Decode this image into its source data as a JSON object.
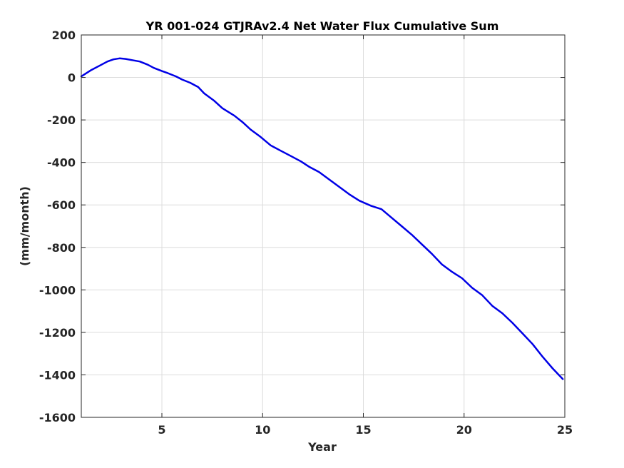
{
  "chart_data": {
    "type": "line",
    "title": "YR 001-024 GTJRAv2.4 Net Water Flux Cumulative Sum",
    "xlabel": "Year",
    "ylabel": "(mm/month)",
    "xlim": [
      1,
      25
    ],
    "ylim": [
      -1600,
      200
    ],
    "xticks": [
      5,
      10,
      15,
      20,
      25
    ],
    "xtick_labels": [
      "5",
      "10",
      "15",
      "20",
      "25"
    ],
    "yticks": [
      -1600,
      -1400,
      -1200,
      -1000,
      -800,
      -600,
      -400,
      -200,
      0,
      200
    ],
    "ytick_labels": [
      "-1600",
      "-1400",
      "-1200",
      "-1000",
      "-800",
      "-600",
      "-400",
      "-200",
      "0",
      "200"
    ],
    "grid": true,
    "series": [
      {
        "color": "#0000e6",
        "x": [
          1.0,
          1.5,
          1.9,
          2.3,
          2.6,
          2.9,
          3.2,
          3.6,
          3.9,
          4.3,
          4.6,
          5.0,
          5.3,
          5.7,
          6.0,
          6.4,
          6.8,
          7.1,
          7.6,
          8.0,
          8.6,
          9.0,
          9.4,
          9.9,
          10.4,
          10.9,
          11.4,
          11.9,
          12.3,
          12.8,
          13.3,
          13.8,
          14.3,
          14.8,
          15.4,
          15.9,
          16.4,
          16.9,
          17.4,
          17.9,
          18.4,
          18.9,
          19.4,
          19.9,
          20.4,
          20.9,
          21.4,
          21.9,
          22.4,
          22.9,
          23.4,
          23.9,
          24.4,
          24.9
        ],
        "y": [
          5,
          35,
          55,
          75,
          85,
          90,
          87,
          80,
          75,
          60,
          45,
          30,
          20,
          5,
          -10,
          -25,
          -45,
          -75,
          -110,
          -145,
          -180,
          -210,
          -245,
          -280,
          -320,
          -345,
          -370,
          -395,
          -420,
          -445,
          -480,
          -515,
          -550,
          -580,
          -605,
          -620,
          -660,
          -700,
          -740,
          -785,
          -830,
          -880,
          -915,
          -945,
          -990,
          -1025,
          -1075,
          -1110,
          -1155,
          -1205,
          -1255,
          -1315,
          -1370,
          -1420
        ]
      }
    ]
  }
}
